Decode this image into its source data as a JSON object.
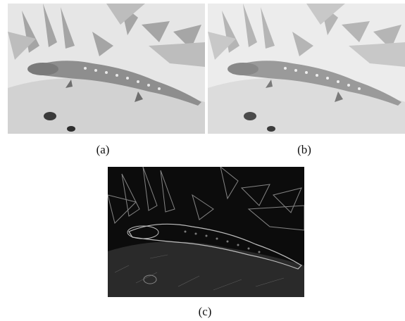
{
  "figure": {
    "panels": [
      {
        "id": "a",
        "caption": "(a)",
        "tone": "light"
      },
      {
        "id": "b",
        "caption": "(b)",
        "tone": "light-hazy"
      },
      {
        "id": "c",
        "caption": "(c)",
        "tone": "dark-edge-map"
      }
    ]
  }
}
